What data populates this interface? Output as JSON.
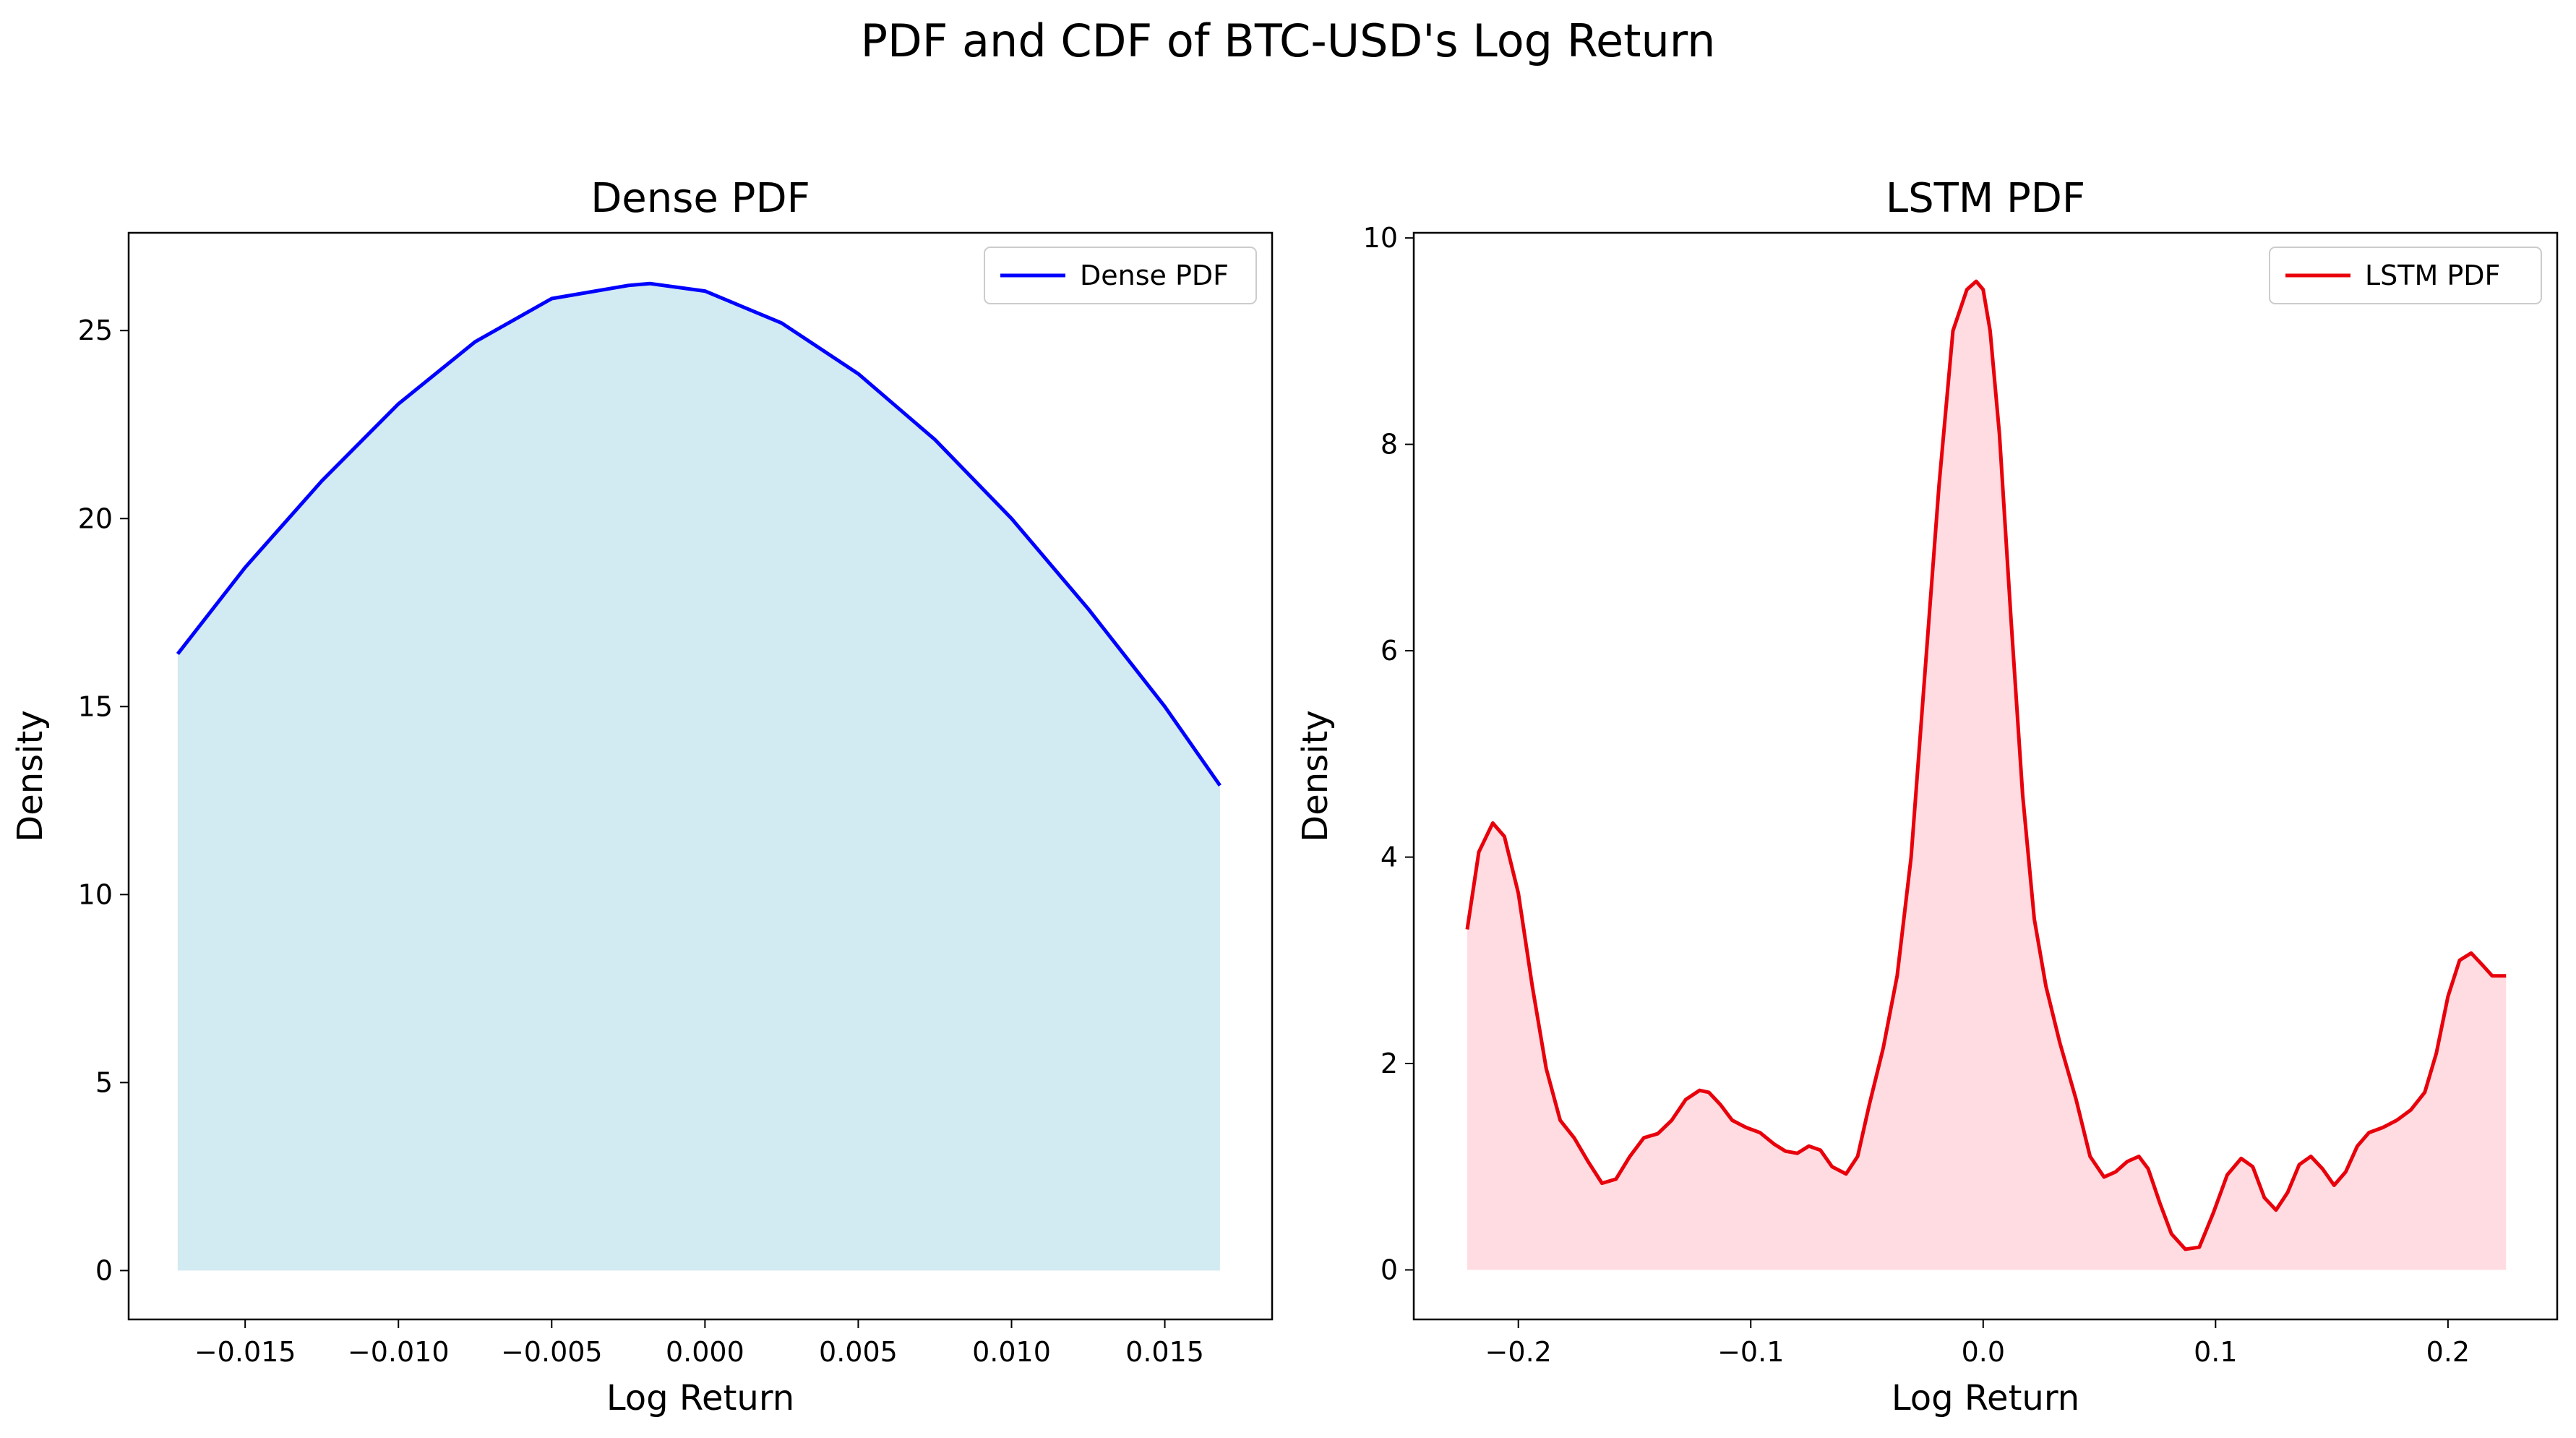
{
  "figure": {
    "suptitle": "PDF and CDF of BTC-USD's Log Return"
  },
  "chart_data": [
    {
      "type": "area",
      "title": "Dense PDF",
      "xlabel": "Log Return",
      "ylabel": "Density",
      "xlim": [
        -0.0188,
        0.0185
      ],
      "ylim": [
        -1.3,
        27.6
      ],
      "xticks": [
        -0.015,
        -0.01,
        -0.005,
        0.0,
        0.005,
        0.01,
        0.015
      ],
      "xtick_labels": [
        "−0.015",
        "−0.010",
        "−0.005",
        "0.000",
        "0.005",
        "0.010",
        "0.015"
      ],
      "yticks": [
        0,
        5,
        10,
        15,
        20,
        25
      ],
      "ytick_labels": [
        "0",
        "5",
        "10",
        "15",
        "20",
        "25"
      ],
      "grid": false,
      "legend_position": "top-right",
      "line_color": "#0000ff",
      "fill_color": "#add8e6",
      "series": [
        {
          "name": "Dense PDF",
          "x": [
            -0.0172,
            -0.015,
            -0.0125,
            -0.01,
            -0.0075,
            -0.005,
            -0.0025,
            -0.0018,
            0.0,
            0.0025,
            0.005,
            0.0075,
            0.01,
            0.0125,
            0.015,
            0.0168
          ],
          "y": [
            16.4,
            18.7,
            21.0,
            23.05,
            24.7,
            25.85,
            26.2,
            26.25,
            26.05,
            25.2,
            23.85,
            22.1,
            20.0,
            17.6,
            15.0,
            12.9
          ]
        }
      ]
    },
    {
      "type": "area",
      "title": "LSTM PDF",
      "xlabel": "Log Return",
      "ylabel": "Density",
      "xlim": [
        -0.245,
        0.247
      ],
      "ylim": [
        -0.48,
        10.05
      ],
      "xticks": [
        -0.2,
        -0.1,
        0.0,
        0.1,
        0.2
      ],
      "xtick_labels": [
        "−0.2",
        "−0.1",
        "0.0",
        "0.1",
        "0.2"
      ],
      "yticks": [
        0,
        2,
        4,
        6,
        8,
        10
      ],
      "ytick_labels": [
        "0",
        "2",
        "4",
        "6",
        "8",
        "10"
      ],
      "grid": false,
      "legend_position": "top-right",
      "line_color": "#e8000b",
      "fill_color": "#ffc0cb",
      "series": [
        {
          "name": "LSTM PDF",
          "x": [
            -0.222,
            -0.217,
            -0.211,
            -0.206,
            -0.2,
            -0.194,
            -0.188,
            -0.182,
            -0.176,
            -0.17,
            -0.164,
            -0.158,
            -0.152,
            -0.146,
            -0.14,
            -0.134,
            -0.128,
            -0.122,
            -0.118,
            -0.113,
            -0.108,
            -0.102,
            -0.096,
            -0.09,
            -0.085,
            -0.08,
            -0.075,
            -0.07,
            -0.065,
            -0.059,
            -0.054,
            -0.049,
            -0.043,
            -0.037,
            -0.031,
            -0.025,
            -0.019,
            -0.013,
            -0.007,
            -0.003,
            0.0,
            0.003,
            0.007,
            0.012,
            0.017,
            0.022,
            0.027,
            0.033,
            0.04,
            0.046,
            0.052,
            0.057,
            0.062,
            0.067,
            0.071,
            0.076,
            0.081,
            0.087,
            0.093,
            0.099,
            0.105,
            0.111,
            0.116,
            0.121,
            0.126,
            0.131,
            0.136,
            0.141,
            0.146,
            0.151,
            0.156,
            0.161,
            0.166,
            0.172,
            0.178,
            0.184,
            0.19,
            0.195,
            0.2,
            0.205,
            0.21,
            0.215,
            0.219,
            0.222,
            0.225
          ],
          "y": [
            3.3,
            4.05,
            4.33,
            4.2,
            3.65,
            2.75,
            1.95,
            1.45,
            1.28,
            1.05,
            0.84,
            0.88,
            1.1,
            1.28,
            1.32,
            1.45,
            1.65,
            1.74,
            1.72,
            1.6,
            1.45,
            1.38,
            1.33,
            1.22,
            1.15,
            1.13,
            1.2,
            1.16,
            1.0,
            0.93,
            1.1,
            1.6,
            2.15,
            2.85,
            4.0,
            5.8,
            7.6,
            9.1,
            9.5,
            9.58,
            9.5,
            9.1,
            8.1,
            6.3,
            4.6,
            3.4,
            2.75,
            2.2,
            1.65,
            1.1,
            0.9,
            0.95,
            1.05,
            1.1,
            0.98,
            0.65,
            0.35,
            0.2,
            0.22,
            0.55,
            0.92,
            1.08,
            1.0,
            0.7,
            0.58,
            0.75,
            1.02,
            1.1,
            0.98,
            0.82,
            0.95,
            1.2,
            1.33,
            1.38,
            1.45,
            1.55,
            1.72,
            2.1,
            2.65,
            3.0,
            3.07,
            2.95,
            2.85,
            2.85,
            2.85
          ]
        }
      ]
    }
  ]
}
